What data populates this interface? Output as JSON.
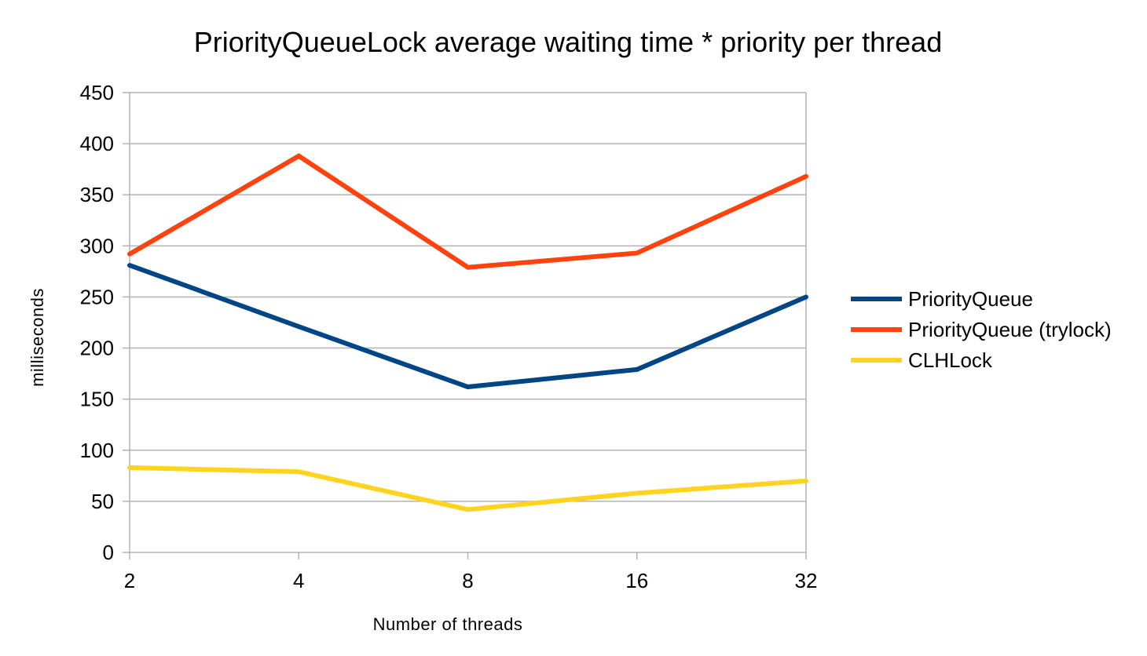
{
  "chart_data": {
    "type": "line",
    "title": "PriorityQueueLock average waiting time * priority per thread",
    "xlabel": "Number of threads",
    "ylabel": "milliseconds",
    "categories": [
      "2",
      "4",
      "8",
      "16",
      "32"
    ],
    "ylim": [
      0,
      450
    ],
    "yticks": [
      0,
      50,
      100,
      150,
      200,
      250,
      300,
      350,
      400,
      450
    ],
    "grid": true,
    "legend_position": "right",
    "series": [
      {
        "name": "PriorityQueue",
        "color": "#004586",
        "values": [
          281,
          221,
          162,
          179,
          250
        ]
      },
      {
        "name": "PriorityQueue (trylock)",
        "color": "#ff420e",
        "values": [
          292,
          388,
          279,
          293,
          368
        ]
      },
      {
        "name": "CLHLock",
        "color": "#ffd320",
        "values": [
          83,
          79,
          42,
          58,
          70
        ]
      }
    ]
  }
}
